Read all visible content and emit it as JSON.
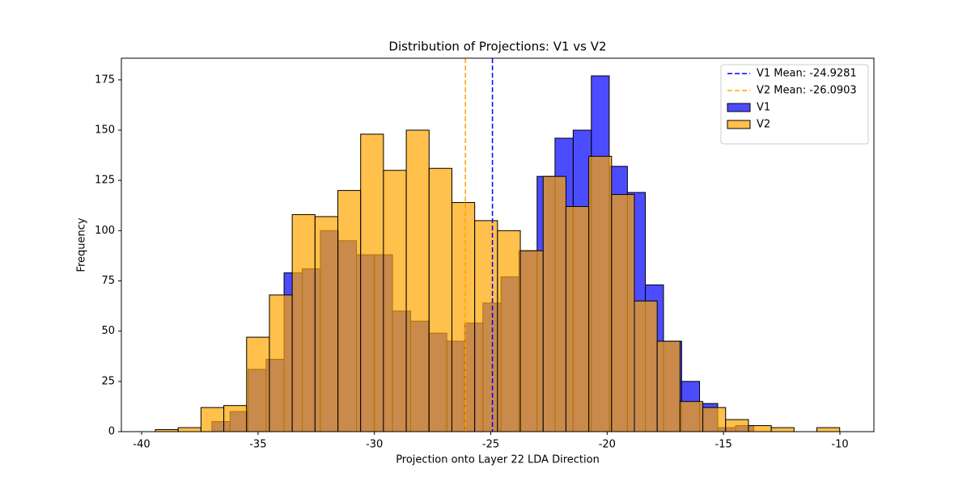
{
  "chart_data": {
    "type": "histogram",
    "title": "Distribution of Projections: V1 vs V2",
    "x_label": "Projection onto Layer 22 LDA Direction",
    "y_label": "Frequency",
    "xlim": [
      -40.87,
      -8.54
    ],
    "ylim": [
      0,
      185.8
    ],
    "xticks": [
      -40,
      -35,
      -30,
      -25,
      -20,
      -15,
      -10
    ],
    "yticks": [
      0,
      25,
      50,
      75,
      100,
      125,
      150,
      175
    ],
    "grid": false,
    "legend": "upper right",
    "series": [
      {
        "name": "V1",
        "color": "#0000ff",
        "bins": [
          -36.98,
          -36.2,
          -35.43,
          -34.65,
          -33.88,
          -33.1,
          -32.32,
          -31.55,
          -30.77,
          -30.0,
          -29.22,
          -28.44,
          -27.67,
          -26.89,
          -26.12,
          -25.34,
          -24.56,
          -23.79,
          -23.01,
          -22.24,
          -21.46,
          -20.68,
          -19.91,
          -19.13,
          -18.36,
          -17.58,
          -16.8,
          -16.03,
          -15.25,
          -14.48,
          -13.7
        ],
        "values": [
          5,
          10,
          31,
          36,
          79,
          81,
          100,
          95,
          88,
          88,
          60,
          55,
          49,
          45,
          54,
          64,
          77,
          90,
          127,
          146,
          150,
          177,
          132,
          119,
          73,
          45,
          25,
          14,
          2,
          3
        ]
      },
      {
        "name": "V2",
        "color": "#ffa500",
        "bins": [
          -39.41,
          -38.43,
          -37.45,
          -36.47,
          -35.49,
          -34.51,
          -33.53,
          -32.55,
          -31.57,
          -30.59,
          -29.61,
          -28.63,
          -27.65,
          -26.67,
          -25.69,
          -24.71,
          -23.73,
          -22.75,
          -21.77,
          -20.79,
          -19.81,
          -18.83,
          -17.85,
          -16.87,
          -15.89,
          -14.91,
          -13.93,
          -12.95,
          -11.97,
          -10.99,
          -10.01
        ],
        "values": [
          1,
          2,
          12,
          13,
          47,
          68,
          108,
          107,
          120,
          148,
          130,
          150,
          131,
          114,
          105,
          100,
          90,
          127,
          112,
          137,
          118,
          65,
          45,
          15,
          12,
          6,
          3,
          2,
          0,
          2
        ]
      }
    ],
    "mean_lines": [
      {
        "label": "V1 Mean: -24.9281",
        "value": -24.9281,
        "color": "#0000ff"
      },
      {
        "label": "V2 Mean: -26.0903",
        "value": -26.0903,
        "color": "#ffa500"
      }
    ]
  }
}
